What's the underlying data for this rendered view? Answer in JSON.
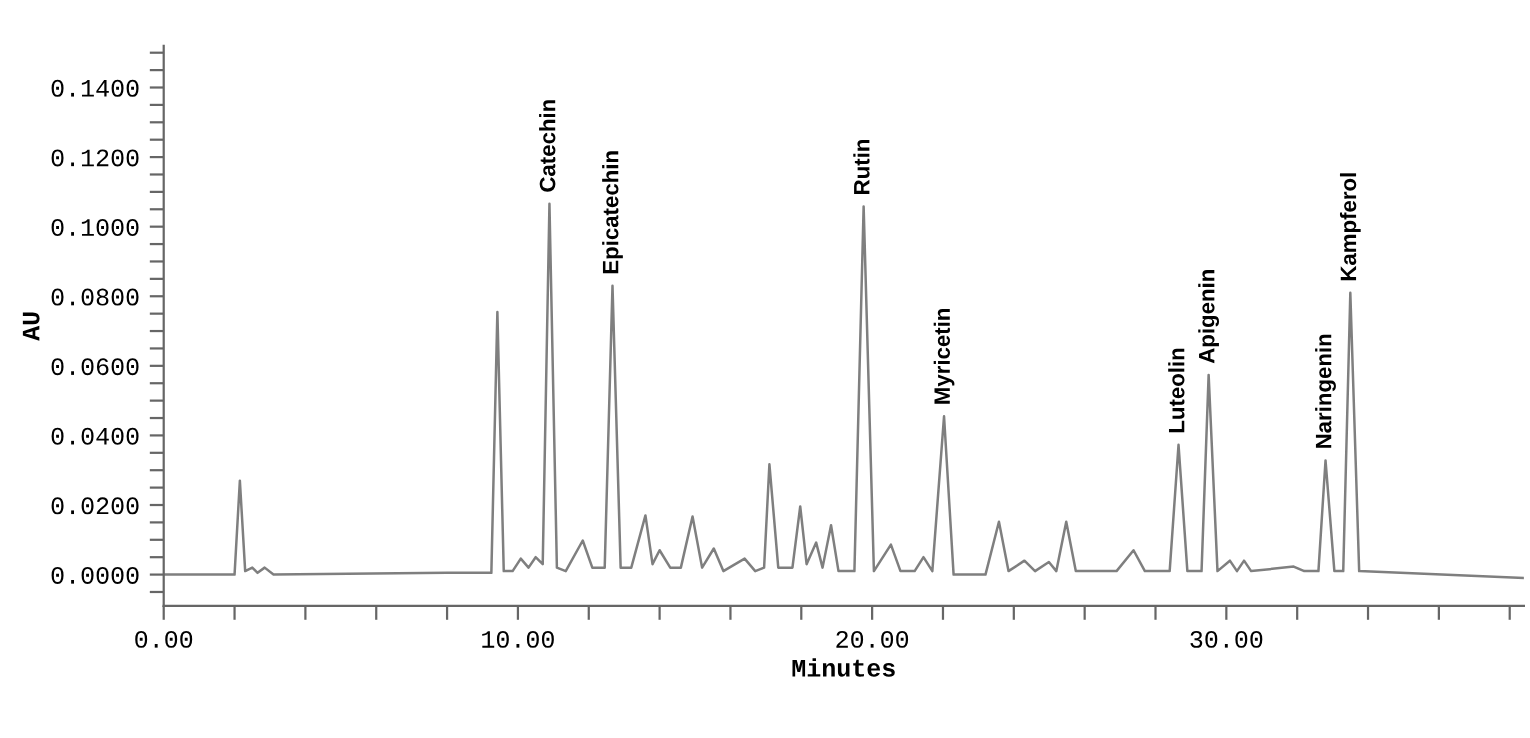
{
  "chart_data": {
    "type": "line",
    "xlabel": "Minutes",
    "ylabel": "AU",
    "series": [
      {
        "color": "#7f7f7f",
        "x": [
          0,
          2.0,
          2.15,
          2.3,
          2.5,
          2.65,
          2.85,
          3.1,
          8.0,
          9.25,
          9.42,
          9.6,
          9.85,
          10.08,
          10.3,
          10.5,
          10.7,
          10.89,
          11.1,
          11.35,
          11.83,
          12.1,
          12.45,
          12.67,
          12.9,
          13.2,
          13.6,
          13.8,
          14.0,
          14.3,
          14.6,
          14.93,
          15.2,
          15.53,
          15.8,
          16.4,
          16.7,
          16.95,
          17.1,
          17.35,
          17.75,
          17.97,
          18.15,
          18.42,
          18.6,
          18.84,
          19.05,
          19.5,
          19.76,
          20.05,
          20.53,
          20.8,
          21.2,
          21.45,
          21.7,
          22.03,
          22.3,
          23.2,
          23.58,
          23.85,
          24.3,
          24.6,
          24.99,
          25.2,
          25.48,
          25.75,
          26.9,
          27.38,
          27.7,
          28.4,
          28.65,
          28.9,
          29.3,
          29.5,
          29.75,
          30.1,
          30.3,
          30.5,
          30.7,
          31.9,
          32.2,
          32.6,
          32.8,
          33.05,
          33.3,
          33.5,
          33.75,
          38.4
        ],
        "values": [
          0,
          0,
          0.027,
          0.001,
          0.002,
          0.0005,
          0.002,
          0,
          0.0005,
          0.0005,
          0.0755,
          0.001,
          0.001,
          0.0046,
          0.002,
          0.005,
          0.003,
          0.1066,
          0.002,
          0.001,
          0.0098,
          0.002,
          0.002,
          0.083,
          0.002,
          0.002,
          0.017,
          0.003,
          0.007,
          0.002,
          0.002,
          0.0167,
          0.002,
          0.0075,
          0.001,
          0.0046,
          0.001,
          0.002,
          0.0317,
          0.002,
          0.002,
          0.0196,
          0.003,
          0.0092,
          0.002,
          0.0142,
          0.001,
          0.001,
          0.1058,
          0.001,
          0.0086,
          0.001,
          0.001,
          0.005,
          0.001,
          0.0455,
          0,
          0,
          0.0152,
          0.001,
          0.004,
          0.001,
          0.0036,
          0.001,
          0.0152,
          0.001,
          0.001,
          0.007,
          0.001,
          0.001,
          0.0373,
          0.001,
          0.001,
          0.0574,
          0.001,
          0.004,
          0.001,
          0.004,
          0.001,
          0.0023,
          0.001,
          0.001,
          0.0328,
          0.001,
          0.001,
          0.081,
          0.001,
          -0.001
        ]
      }
    ],
    "annotations": [
      {
        "text": "Catechin",
        "x": 10.89,
        "y": 0.1066
      },
      {
        "text": "Epicatechin",
        "x": 12.67,
        "y": 0.083
      },
      {
        "text": "Rutin",
        "x": 19.76,
        "y": 0.1058
      },
      {
        "text": "Myricetin",
        "x": 22.03,
        "y": 0.0455
      },
      {
        "text": "Luteolin",
        "x": 28.65,
        "y": 0.0373
      },
      {
        "text": "Apigenin",
        "x": 29.5,
        "y": 0.0574
      },
      {
        "text": "Naringenin",
        "x": 32.8,
        "y": 0.0328
      },
      {
        "text": "Kampferol",
        "x": 33.5,
        "y": 0.081
      }
    ],
    "xlim": [
      0,
      38.4
    ],
    "ylim": [
      -0.009,
      0.152
    ],
    "xticks": [
      {
        "value": 0,
        "label": "0.00"
      },
      {
        "value": 2,
        "label": null
      },
      {
        "value": 4,
        "label": null
      },
      {
        "value": 6,
        "label": null
      },
      {
        "value": 8,
        "label": null
      },
      {
        "value": 10,
        "label": "10.00"
      },
      {
        "value": 12,
        "label": null
      },
      {
        "value": 14,
        "label": null
      },
      {
        "value": 16,
        "label": null
      },
      {
        "value": 18,
        "label": null
      },
      {
        "value": 20,
        "label": "20.00"
      },
      {
        "value": 22,
        "label": null
      },
      {
        "value": 24,
        "label": null
      },
      {
        "value": 26,
        "label": null
      },
      {
        "value": 28,
        "label": null
      },
      {
        "value": 30,
        "label": "30.00"
      },
      {
        "value": 32,
        "label": null
      },
      {
        "value": 34,
        "label": null
      },
      {
        "value": 36,
        "label": null
      },
      {
        "value": 38,
        "label": null
      }
    ],
    "yticks": [
      {
        "value": -0.005,
        "label": null
      },
      {
        "value": 0,
        "label": "0.0000"
      },
      {
        "value": 0.005,
        "label": null
      },
      {
        "value": 0.01,
        "label": null
      },
      {
        "value": 0.015,
        "label": null
      },
      {
        "value": 0.02,
        "label": "0.0200"
      },
      {
        "value": 0.025,
        "label": null
      },
      {
        "value": 0.03,
        "label": null
      },
      {
        "value": 0.035,
        "label": null
      },
      {
        "value": 0.04,
        "label": "0.0400"
      },
      {
        "value": 0.045,
        "label": null
      },
      {
        "value": 0.05,
        "label": null
      },
      {
        "value": 0.055,
        "label": null
      },
      {
        "value": 0.06,
        "label": "0.0600"
      },
      {
        "value": 0.065,
        "label": null
      },
      {
        "value": 0.07,
        "label": null
      },
      {
        "value": 0.075,
        "label": null
      },
      {
        "value": 0.08,
        "label": "0.0800"
      },
      {
        "value": 0.085,
        "label": null
      },
      {
        "value": 0.09,
        "label": null
      },
      {
        "value": 0.095,
        "label": null
      },
      {
        "value": 0.1,
        "label": "0.1000"
      },
      {
        "value": 0.105,
        "label": null
      },
      {
        "value": 0.11,
        "label": null
      },
      {
        "value": 0.115,
        "label": null
      },
      {
        "value": 0.12,
        "label": "0.1200"
      },
      {
        "value": 0.125,
        "label": null
      },
      {
        "value": 0.13,
        "label": null
      },
      {
        "value": 0.135,
        "label": null
      },
      {
        "value": 0.14,
        "label": "0.1400"
      },
      {
        "value": 0.145,
        "label": null
      },
      {
        "value": 0.15,
        "label": null
      }
    ],
    "grid": false
  }
}
